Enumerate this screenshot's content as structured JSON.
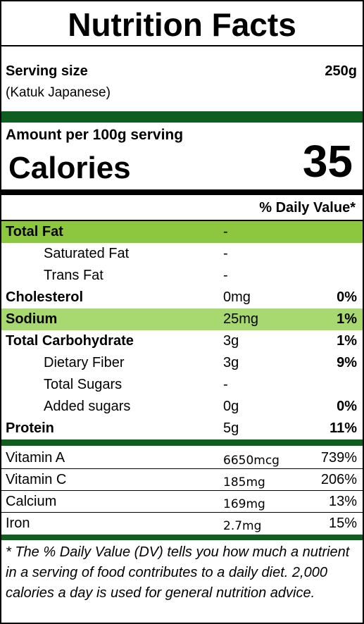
{
  "title": "Nutrition Facts",
  "serving": {
    "label": "Serving size",
    "size": "250g",
    "food_name": "(Katuk Japanese)"
  },
  "amount_per": "Amount per 100g serving",
  "calories": {
    "label": "Calories",
    "value": "35"
  },
  "dv_header": "% Daily Value*",
  "nutrients": [
    {
      "name": "Total Fat",
      "amount": "-",
      "dv": ""
    },
    {
      "name": "Saturated Fat",
      "amount": "-",
      "dv": ""
    },
    {
      "name": "Trans Fat",
      "amount": "-",
      "dv": ""
    },
    {
      "name": "Cholesterol",
      "amount": "0mg",
      "dv": "0%"
    },
    {
      "name": "Sodium",
      "amount": "25mg",
      "dv": "1%"
    },
    {
      "name": "Total Carbohydrate",
      "amount": "3g",
      "dv": "1%"
    },
    {
      "name": "Dietary Fiber",
      "amount": "3g",
      "dv": "9%"
    },
    {
      "name": "Total Sugars",
      "amount": "-",
      "dv": ""
    },
    {
      "name": "Added sugars",
      "amount": "0g",
      "dv": "0%"
    },
    {
      "name": "Protein",
      "amount": "5g",
      "dv": "11%"
    }
  ],
  "vitamins": [
    {
      "name": "Vitamin A",
      "amount": "6650mcg",
      "dv": "739%"
    },
    {
      "name": "Vitamin C",
      "amount": "185mg",
      "dv": "206%"
    },
    {
      "name": "Calcium",
      "amount": "169mg",
      "dv": "13%"
    },
    {
      "name": "Iron",
      "amount": "2.7mg",
      "dv": "15%"
    }
  ],
  "footnote": "* The % Daily Value (DV) tells you how much a nutrient in a serving of food contributes to a daily diet. 2,000 calories a day is used for general nutrition advice.",
  "colors": {
    "dark_green": "#0e5f1e",
    "highlight_green": "#8dc63f",
    "light_green": "#a8d870"
  }
}
